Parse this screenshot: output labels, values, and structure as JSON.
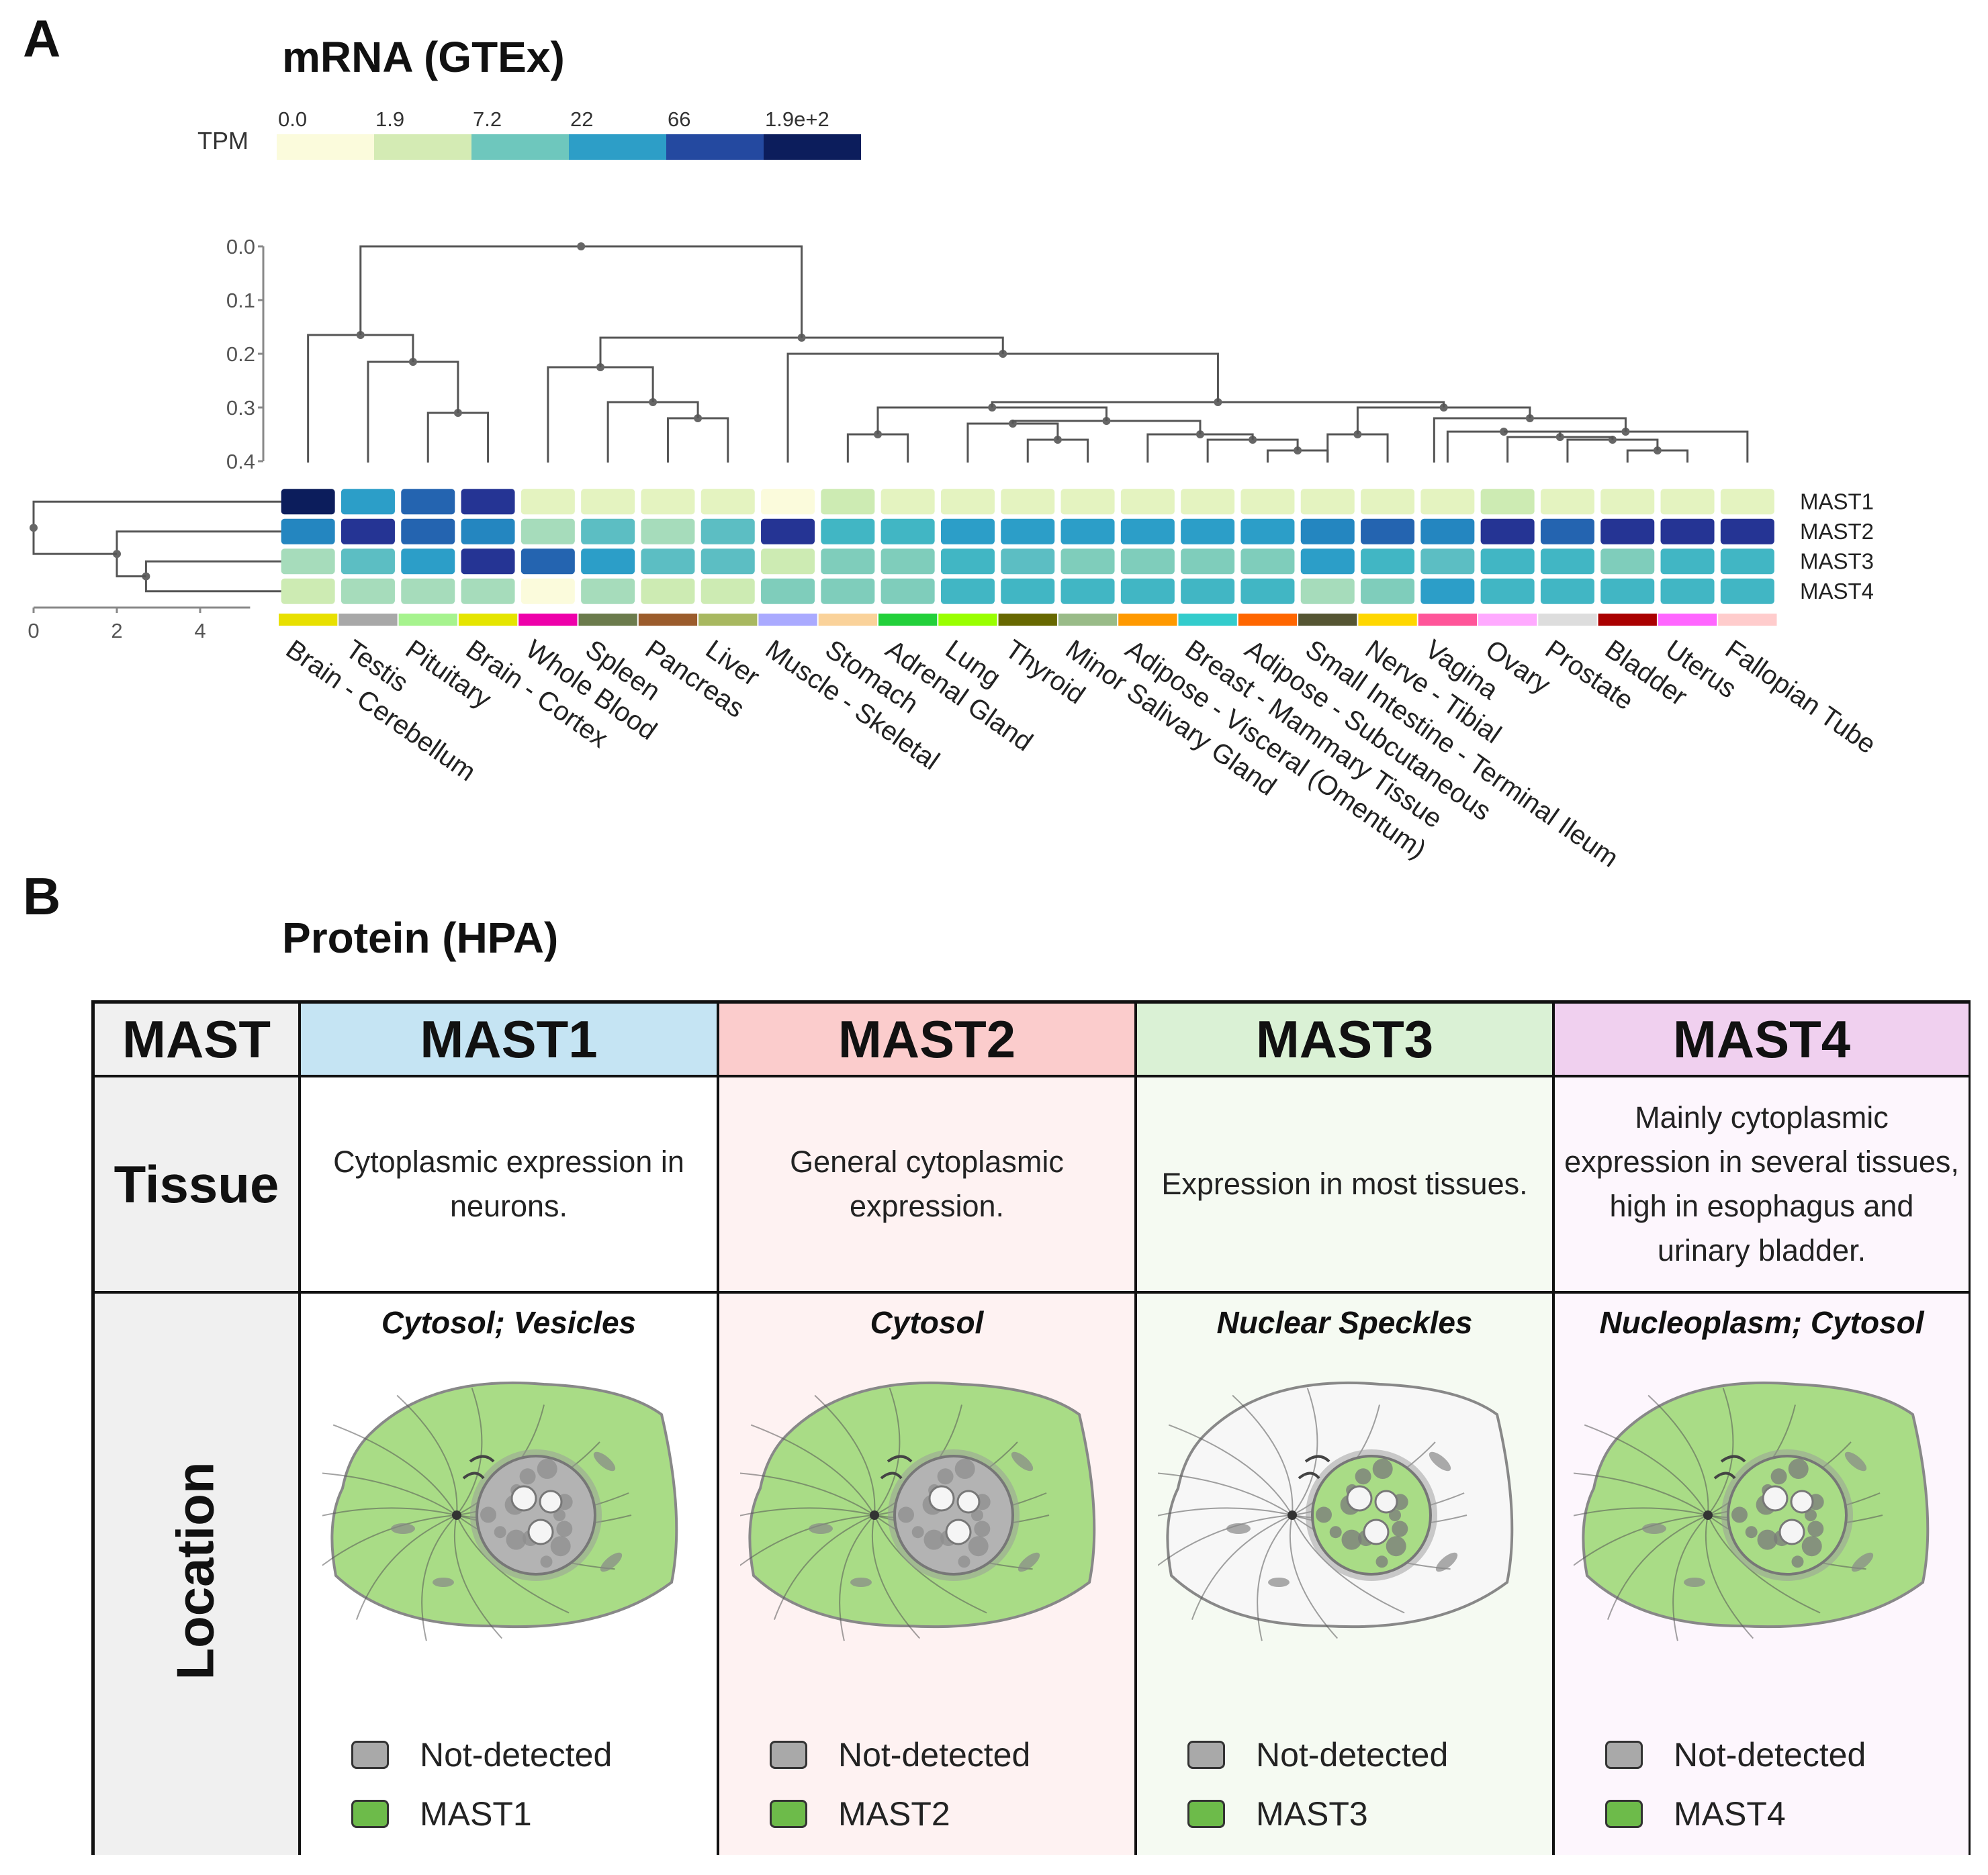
{
  "panel_a": {
    "letter": "A",
    "title": "mRNA (GTEx)"
  },
  "panel_b": {
    "letter": "B",
    "title": "Protein (HPA)"
  },
  "chart_data": {
    "type": "heatmap",
    "title": "mRNA (GTEx)",
    "legend_label": "TPM",
    "legend_ticks": [
      "0.0",
      "1.9",
      "7.2",
      "22",
      "66",
      "1.9e+2"
    ],
    "legend_colors": [
      "#fbfbdc",
      "#d4ebb4",
      "#6ec7bd",
      "#2d9ec7",
      "#2449a0",
      "#0c1d5c"
    ],
    "palette": [
      "#fbfbdc",
      "#e4f3c0",
      "#cdebb3",
      "#a6dcbb",
      "#7fcdbb",
      "#5cbec3",
      "#41b6c4",
      "#2c9ec8",
      "#2486c0",
      "#2464b0",
      "#253494",
      "#0c1d5c"
    ],
    "genes": [
      "MAST1",
      "MAST2",
      "MAST3",
      "MAST4"
    ],
    "tissues": [
      "Brain - Cerebellum",
      "Testis",
      "Pituitary",
      "Brain - Cortex",
      "Whole Blood",
      "Spleen",
      "Pancreas",
      "Liver",
      "Muscle - Skeletal",
      "Stomach",
      "Adrenal Gland",
      "Lung",
      "Thyroid",
      "Minor Salivary Gland",
      "Adipose - Visceral (Omentum)",
      "Breast - Mammary Tissue",
      "Adipose - Subcutaneous",
      "Small Intestine - Terminal Ileum",
      "Nerve - Tibial",
      "Vagina",
      "Ovary",
      "Prostate",
      "Bladder",
      "Uterus",
      "Fallopian Tube"
    ],
    "tissue_colors": [
      "#e8e000",
      "#a8a8a8",
      "#a6f38e",
      "#e5e500",
      "#ee00aa",
      "#6b7b4c",
      "#9b5c2c",
      "#a8b860",
      "#aaaaff",
      "#fad29a",
      "#22d03a",
      "#99ff00",
      "#676800",
      "#99bb88",
      "#ff9900",
      "#33cccc",
      "#ff6600",
      "#555533",
      "#ffd700",
      "#ff5599",
      "#ffaaff",
      "#dddddd",
      "#aa0000",
      "#ff66ff",
      "#ffcccc"
    ],
    "values_level": [
      [
        11,
        7,
        9,
        10,
        1,
        1,
        1,
        1,
        0,
        2,
        1,
        1,
        1,
        1,
        1,
        1,
        1,
        1,
        1,
        1,
        2,
        1,
        1,
        1,
        1
      ],
      [
        8,
        10,
        9,
        8,
        3,
        5,
        3,
        5,
        10,
        6,
        6,
        7,
        7,
        7,
        7,
        7,
        7,
        8,
        9,
        8,
        10,
        9,
        10,
        10,
        10
      ],
      [
        3,
        5,
        7,
        10,
        9,
        7,
        5,
        5,
        2,
        4,
        4,
        6,
        5,
        4,
        4,
        4,
        4,
        7,
        6,
        5,
        6,
        6,
        4,
        6,
        6
      ],
      [
        2,
        3,
        3,
        3,
        0,
        3,
        2,
        2,
        4,
        4,
        4,
        6,
        6,
        6,
        6,
        6,
        6,
        3,
        4,
        7,
        6,
        6,
        6,
        6,
        6
      ]
    ],
    "top_dendrogram": {
      "axis_ticks": [
        "0.0",
        "0.1",
        "0.2",
        "0.3",
        "0.4"
      ]
    },
    "left_dendrogram": {
      "axis_ticks": [
        "0",
        "2",
        "4"
      ]
    }
  },
  "table": {
    "corner_label": "MAST",
    "row_labels": {
      "tissue": "Tissue",
      "location": "Location"
    },
    "columns": [
      {
        "name": "MAST1",
        "header_color": "#c5e4f3",
        "body_color": "#ffffff",
        "tissue_text": "Cytoplasmic expression in neurons.",
        "location": "Cytosol; Vesicles",
        "legend_nd": "Not-detected",
        "legend_gene": "MAST1",
        "cell_style": "cytosol"
      },
      {
        "name": "MAST2",
        "header_color": "#fbcccc",
        "body_color": "#fef2f2",
        "tissue_text": "General cytoplasmic expression.",
        "location": "Cytosol",
        "legend_nd": "Not-detected",
        "legend_gene": "MAST2",
        "cell_style": "cytosol"
      },
      {
        "name": "MAST3",
        "header_color": "#daf1d5",
        "body_color": "#f5faf2",
        "tissue_text": "Expression in most tissues.",
        "location": "Nuclear Speckles",
        "legend_nd": "Not-detected",
        "legend_gene": "MAST3",
        "cell_style": "nuclear"
      },
      {
        "name": "MAST4",
        "header_color": "#f0d0ef",
        "body_color": "#fdf6fd",
        "tissue_text": "Mainly cytoplasmic expression in several tissues, high in esophagus and urinary bladder.",
        "location": "Nucleoplasm; Cytosol",
        "legend_nd": "Not-detected",
        "legend_gene": "MAST4",
        "cell_style": "both"
      }
    ],
    "colors": {
      "corner": "#f0f0f0",
      "not_detected": "#a9a9a9",
      "detected": "#6dbb4a",
      "cell_green": "#a9dc86",
      "cell_white": "#f7f7f7",
      "nucleus_grey": "#b3b3b3"
    }
  }
}
